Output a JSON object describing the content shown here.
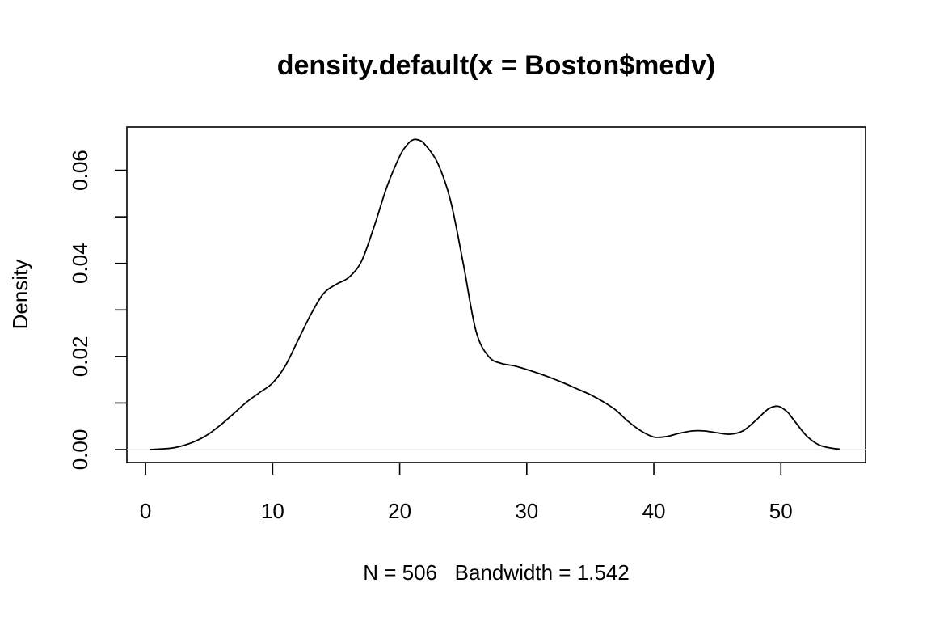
{
  "chart_data": {
    "type": "line",
    "title": "density.default(x = Boston$medv)",
    "xlabel": "N = 506   Bandwidth = 1.542",
    "ylabel": "Density",
    "xlim": [
      0.374,
      54.626
    ],
    "ylim": [
      0,
      0.0667
    ],
    "x_ticks": [
      0,
      10,
      20,
      30,
      40,
      50
    ],
    "x_tick_labels": [
      "0",
      "10",
      "20",
      "30",
      "40",
      "50"
    ],
    "y_ticks": [
      0.0,
      0.01,
      0.02,
      0.03,
      0.04,
      0.05,
      0.06
    ],
    "y_tick_labels": [
      "0.00",
      "",
      "0.02",
      "",
      "0.04",
      "",
      "0.06"
    ],
    "grid": false,
    "legend": "none",
    "series": [
      {
        "x": [
          0.374,
          2,
          3,
          4,
          5,
          6,
          7,
          8,
          9,
          10,
          11,
          12,
          13,
          14,
          15,
          16,
          17,
          18,
          19,
          20,
          20.5,
          21,
          21.5,
          22,
          23,
          24,
          25,
          26,
          27,
          28,
          29,
          30,
          31,
          32,
          33,
          34,
          35,
          36,
          37,
          38,
          39,
          40,
          41,
          42,
          43,
          44,
          45,
          46,
          47,
          48,
          49,
          49.8,
          50.5,
          51,
          52,
          53,
          54,
          54.626
        ],
        "y": [
          0.0,
          0.0003,
          0.0009,
          0.0019,
          0.0034,
          0.0055,
          0.0079,
          0.0103,
          0.0123,
          0.0143,
          0.018,
          0.0235,
          0.029,
          0.0335,
          0.0355,
          0.037,
          0.0405,
          0.048,
          0.0565,
          0.063,
          0.0652,
          0.0665,
          0.0665,
          0.0655,
          0.0615,
          0.0535,
          0.04,
          0.0255,
          0.02,
          0.0185,
          0.018,
          0.0172,
          0.0163,
          0.0153,
          0.0142,
          0.013,
          0.0118,
          0.0103,
          0.0085,
          0.006,
          0.004,
          0.0027,
          0.0028,
          0.0035,
          0.004,
          0.004,
          0.0036,
          0.0033,
          0.004,
          0.0062,
          0.0087,
          0.0093,
          0.0081,
          0.0064,
          0.003,
          0.001,
          0.0003,
          0.0001
        ]
      }
    ]
  }
}
